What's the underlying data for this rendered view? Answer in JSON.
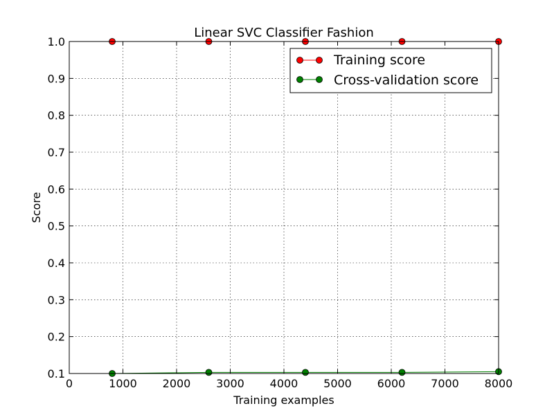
{
  "chart_data": {
    "type": "line",
    "title": "Linear SVC Classifier Fashion",
    "xlabel": "Training examples",
    "ylabel": "Score",
    "xlim": [
      0,
      8000
    ],
    "ylim": [
      0.1,
      1.0
    ],
    "xticks": [
      0,
      1000,
      2000,
      3000,
      4000,
      5000,
      6000,
      7000,
      8000
    ],
    "yticks": [
      0.1,
      0.2,
      0.3,
      0.4,
      0.5,
      0.6,
      0.7,
      0.8,
      0.9,
      1.0
    ],
    "xtick_labels": [
      "0",
      "1000",
      "2000",
      "3000",
      "4000",
      "5000",
      "6000",
      "7000",
      "8000"
    ],
    "ytick_labels": [
      "0.1",
      "0.2",
      "0.3",
      "0.4",
      "0.5",
      "0.6",
      "0.7",
      "0.8",
      "0.9",
      "1.0"
    ],
    "grid": true,
    "legend_position": "top-right",
    "x": [
      800,
      2600,
      4400,
      6200,
      8000
    ],
    "series": [
      {
        "name": "Training score",
        "color": "#ff0000",
        "values": [
          1.0,
          1.0,
          1.0,
          1.0,
          1.0
        ]
      },
      {
        "name": "Cross-validation score",
        "color": "#008000",
        "values": [
          0.1,
          0.103,
          0.103,
          0.103,
          0.105
        ]
      }
    ]
  }
}
